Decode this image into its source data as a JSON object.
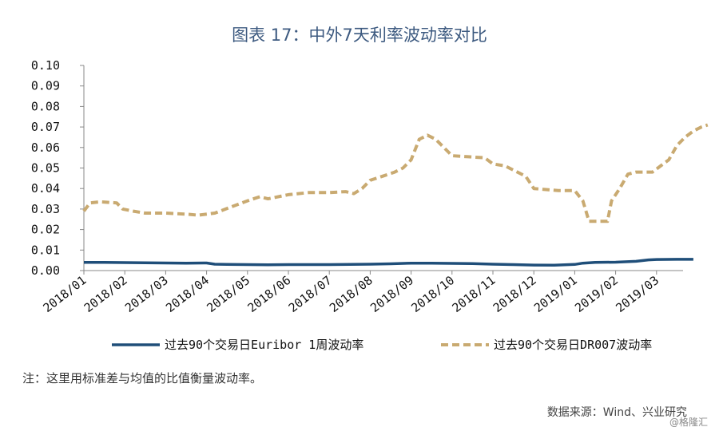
{
  "title": "图表 17：中外7天利率波动率对比",
  "note": "注：这里用标准差与均值的比值衡量波动率。",
  "source": "数据来源：Wind、兴业研究",
  "watermark": "@格隆汇",
  "chart_data": {
    "type": "line",
    "title": "图表 17：中外7天利率波动率对比",
    "xlabel": "",
    "ylabel": "",
    "ylim": [
      0,
      0.1
    ],
    "yticks": [
      "0.00",
      "0.01",
      "0.02",
      "0.03",
      "0.04",
      "0.05",
      "0.06",
      "0.07",
      "0.08",
      "0.09",
      "0.10"
    ],
    "xticks": [
      "2018/01",
      "2018/02",
      "2018/03",
      "2018/04",
      "2018/05",
      "2018/06",
      "2018/07",
      "2018/08",
      "2018/09",
      "2018/10",
      "2018/11",
      "2018/12",
      "2019/01",
      "2019/02",
      "2019/03"
    ],
    "grid": false,
    "legend_position": "bottom",
    "series": [
      {
        "name": "过去90个交易日Euribor 1周波动率",
        "color": "#1f4e79",
        "style": "solid",
        "points": [
          [
            0,
            0.004
          ],
          [
            0.5,
            0.004
          ],
          [
            1.0,
            0.0039
          ],
          [
            1.5,
            0.0038
          ],
          [
            2.0,
            0.0037
          ],
          [
            2.5,
            0.0036
          ],
          [
            3.0,
            0.0037
          ],
          [
            3.2,
            0.0031
          ],
          [
            3.5,
            0.003
          ],
          [
            4.0,
            0.0029
          ],
          [
            4.5,
            0.0028
          ],
          [
            5.0,
            0.0029
          ],
          [
            5.5,
            0.0029
          ],
          [
            6.0,
            0.0029
          ],
          [
            6.5,
            0.003
          ],
          [
            7.0,
            0.0031
          ],
          [
            7.5,
            0.0033
          ],
          [
            8.0,
            0.0036
          ],
          [
            8.5,
            0.0036
          ],
          [
            9.0,
            0.0035
          ],
          [
            9.5,
            0.0034
          ],
          [
            10.0,
            0.0031
          ],
          [
            10.5,
            0.0029
          ],
          [
            11.0,
            0.0027
          ],
          [
            11.5,
            0.0026
          ],
          [
            12.0,
            0.003
          ],
          [
            12.2,
            0.0036
          ],
          [
            12.5,
            0.004
          ],
          [
            13.0,
            0.0041
          ],
          [
            13.5,
            0.0045
          ],
          [
            13.8,
            0.0052
          ],
          [
            14.0,
            0.0054
          ],
          [
            14.5,
            0.0055
          ],
          [
            14.9,
            0.0055
          ]
        ]
      },
      {
        "name": "过去90个交易日DR007波动率",
        "color": "#c9aa71",
        "style": "dashed",
        "points": [
          [
            0,
            0.029
          ],
          [
            0.15,
            0.033
          ],
          [
            0.4,
            0.0335
          ],
          [
            0.8,
            0.033
          ],
          [
            0.95,
            0.03
          ],
          [
            1.2,
            0.029
          ],
          [
            1.5,
            0.028
          ],
          [
            2.0,
            0.028
          ],
          [
            2.5,
            0.0275
          ],
          [
            2.8,
            0.027
          ],
          [
            3.2,
            0.028
          ],
          [
            3.6,
            0.031
          ],
          [
            4.0,
            0.034
          ],
          [
            4.3,
            0.036
          ],
          [
            4.5,
            0.035
          ],
          [
            5.0,
            0.037
          ],
          [
            5.5,
            0.038
          ],
          [
            6.0,
            0.038
          ],
          [
            6.4,
            0.0385
          ],
          [
            6.6,
            0.0375
          ],
          [
            6.8,
            0.04
          ],
          [
            7.0,
            0.044
          ],
          [
            7.3,
            0.046
          ],
          [
            7.6,
            0.048
          ],
          [
            7.8,
            0.05
          ],
          [
            8.0,
            0.054
          ],
          [
            8.2,
            0.064
          ],
          [
            8.4,
            0.066
          ],
          [
            8.6,
            0.064
          ],
          [
            8.8,
            0.06
          ],
          [
            9.0,
            0.056
          ],
          [
            9.4,
            0.0555
          ],
          [
            9.8,
            0.055
          ],
          [
            10.0,
            0.052
          ],
          [
            10.3,
            0.051
          ],
          [
            10.5,
            0.049
          ],
          [
            10.8,
            0.046
          ],
          [
            11.0,
            0.04
          ],
          [
            11.3,
            0.0395
          ],
          [
            11.6,
            0.039
          ],
          [
            12.0,
            0.039
          ],
          [
            12.2,
            0.034
          ],
          [
            12.35,
            0.024
          ],
          [
            12.5,
            0.024
          ],
          [
            12.8,
            0.024
          ],
          [
            12.9,
            0.034
          ],
          [
            13.1,
            0.04
          ],
          [
            13.3,
            0.047
          ],
          [
            13.5,
            0.048
          ],
          [
            13.9,
            0.048
          ],
          [
            14.1,
            0.051
          ],
          [
            14.3,
            0.054
          ],
          [
            14.5,
            0.061
          ],
          [
            14.7,
            0.065
          ],
          [
            14.9,
            0.068
          ],
          [
            15.1,
            0.07
          ],
          [
            15.25,
            0.071
          ]
        ]
      }
    ]
  }
}
